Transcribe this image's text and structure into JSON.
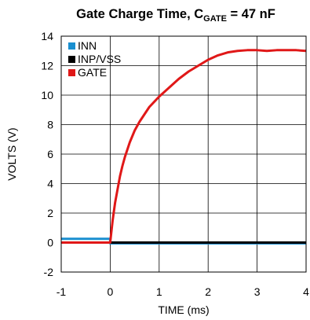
{
  "chart_data": {
    "type": "line",
    "title": {
      "prefix": "Gate Charge Time, C",
      "subscript": "GATE",
      "suffix": " = 47 nF"
    },
    "xlabel": "TIME (ms)",
    "ylabel": "VOLTS (V)",
    "xlim": [
      -1,
      4
    ],
    "ylim": [
      -2,
      14
    ],
    "x_ticks": [
      -1,
      0,
      1,
      2,
      3,
      4
    ],
    "y_ticks": [
      -2,
      0,
      2,
      4,
      6,
      8,
      10,
      12,
      14
    ],
    "grid": true,
    "legend_position": "top-left",
    "series": [
      {
        "name": "INN",
        "color": "#1a8fd0",
        "x": [
          -1,
          0,
          0.0001,
          4
        ],
        "y": [
          0.25,
          0.25,
          -0.05,
          -0.05
        ]
      },
      {
        "name": "INP/VSS",
        "color": "#000000",
        "x": [
          -1,
          4
        ],
        "y": [
          0.0,
          0.0
        ]
      },
      {
        "name": "GATE",
        "color": "#e01818",
        "x": [
          -1,
          0,
          0.05,
          0.1,
          0.15,
          0.2,
          0.25,
          0.3,
          0.4,
          0.5,
          0.6,
          0.8,
          1.0,
          1.2,
          1.4,
          1.6,
          1.8,
          2.0,
          2.2,
          2.4,
          2.6,
          2.8,
          3.0,
          3.2,
          3.4,
          3.6,
          3.8,
          4.0
        ],
        "y": [
          0.0,
          0.0,
          1.5,
          2.7,
          3.6,
          4.5,
          5.2,
          5.8,
          6.8,
          7.6,
          8.2,
          9.2,
          9.9,
          10.5,
          11.1,
          11.6,
          12.0,
          12.4,
          12.7,
          12.9,
          13.0,
          13.05,
          13.05,
          13.0,
          13.05,
          13.05,
          13.05,
          13.0
        ]
      }
    ]
  }
}
